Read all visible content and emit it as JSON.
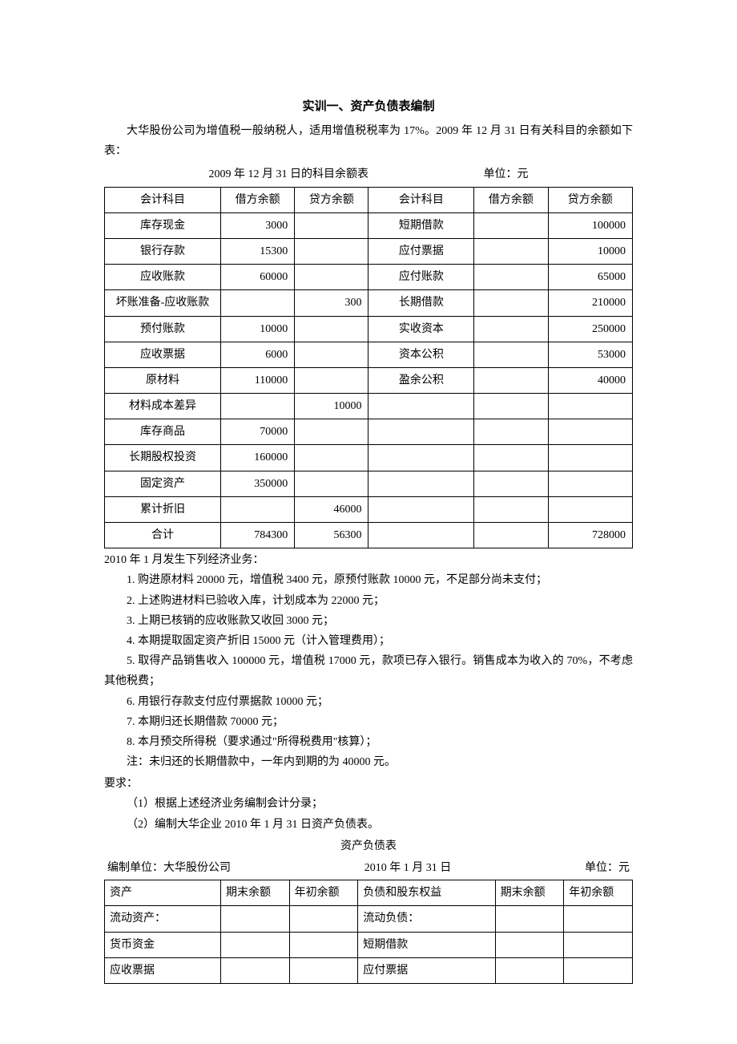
{
  "title": "实训一、资产负债表编制",
  "intro": "大华股份公司为增值税一般纳税人，适用增值税税率为 17%。2009 年 12 月 31 日有关科目的余额如下表：",
  "table1_caption": "2009 年 12 月 31 日的科目余额表",
  "table1_unit": "单位：元",
  "t1": {
    "headers": [
      "会计科目",
      "借方余额",
      "贷方余额",
      "会计科目",
      "借方余额",
      "贷方余额"
    ],
    "rows": [
      [
        "库存现金",
        "3000",
        "",
        "短期借款",
        "",
        "100000"
      ],
      [
        "银行存款",
        "15300",
        "",
        "应付票据",
        "",
        "10000"
      ],
      [
        "应收账款",
        "60000",
        "",
        "应付账款",
        "",
        "65000"
      ],
      [
        "坏账准备-应收账款",
        "",
        "300",
        "长期借款",
        "",
        "210000"
      ],
      [
        "预付账款",
        "10000",
        "",
        "实收资本",
        "",
        "250000"
      ],
      [
        "应收票据",
        "6000",
        "",
        "资本公积",
        "",
        "53000"
      ],
      [
        "原材料",
        "110000",
        "",
        "盈余公积",
        "",
        "40000"
      ],
      [
        "材料成本差异",
        "",
        "10000",
        "",
        "",
        ""
      ],
      [
        "库存商品",
        "70000",
        "",
        "",
        "",
        ""
      ],
      [
        "长期股权投资",
        "160000",
        "",
        "",
        "",
        ""
      ],
      [
        "固定资产",
        "350000",
        "",
        "",
        "",
        ""
      ],
      [
        "累计折旧",
        "",
        "46000",
        "",
        "",
        ""
      ],
      [
        "合计",
        "784300",
        "56300",
        "",
        "",
        "728000"
      ]
    ]
  },
  "section2_label": "2010 年 1 月发生下列经济业务：",
  "transactions": [
    "1. 购进原材料 20000 元，增值税 3400 元，原预付账款 10000 元，不足部分尚未支付；",
    "2. 上述购进材料已验收入库，计划成本为 22000 元；",
    "3. 上期已核销的应收账款又收回 3000 元；",
    "4. 本期提取固定资产折旧 15000 元（计入管理费用）；",
    "5. 取得产品销售收入 100000 元，增值税 17000 元，款项已存入银行。销售成本为收入的 70%，不考虑其他税费；",
    "6. 用银行存款支付应付票据款 10000 元；",
    "7. 本期归还长期借款 70000 元；",
    "8. 本月预交所得税（要求通过\"所得税费用\"核算）；"
  ],
  "note": "注：未归还的长期借款中，一年内到期的为 40000 元。",
  "req_label": "要求：",
  "requirements": [
    "（1）根据上述经济业务编制会计分录；",
    "（2）编制大华企业 2010 年 1 月 31 日资产负债表。"
  ],
  "t2_title": "资产负债表",
  "t2_header": {
    "entity": "编制单位：大华股份公司",
    "date": "2010 年 1 月 31 日",
    "unit": "单位：元"
  },
  "t2": {
    "headers": [
      "资产",
      "期末余额",
      "年初余额",
      "负债和股东权益",
      "期末余额",
      "年初余额"
    ],
    "rows": [
      [
        "流动资产：",
        "",
        "",
        "流动负债：",
        "",
        ""
      ],
      [
        "货币资金",
        "",
        "",
        "短期借款",
        "",
        ""
      ],
      [
        "应收票据",
        "",
        "",
        "应付票据",
        "",
        ""
      ]
    ]
  },
  "layout": {
    "t1_col_widths": [
      "22%",
      "14%",
      "14%",
      "20%",
      "14%",
      "16%"
    ],
    "t2_col_widths": [
      "22%",
      "13%",
      "13%",
      "26%",
      "13%",
      "13%"
    ]
  }
}
